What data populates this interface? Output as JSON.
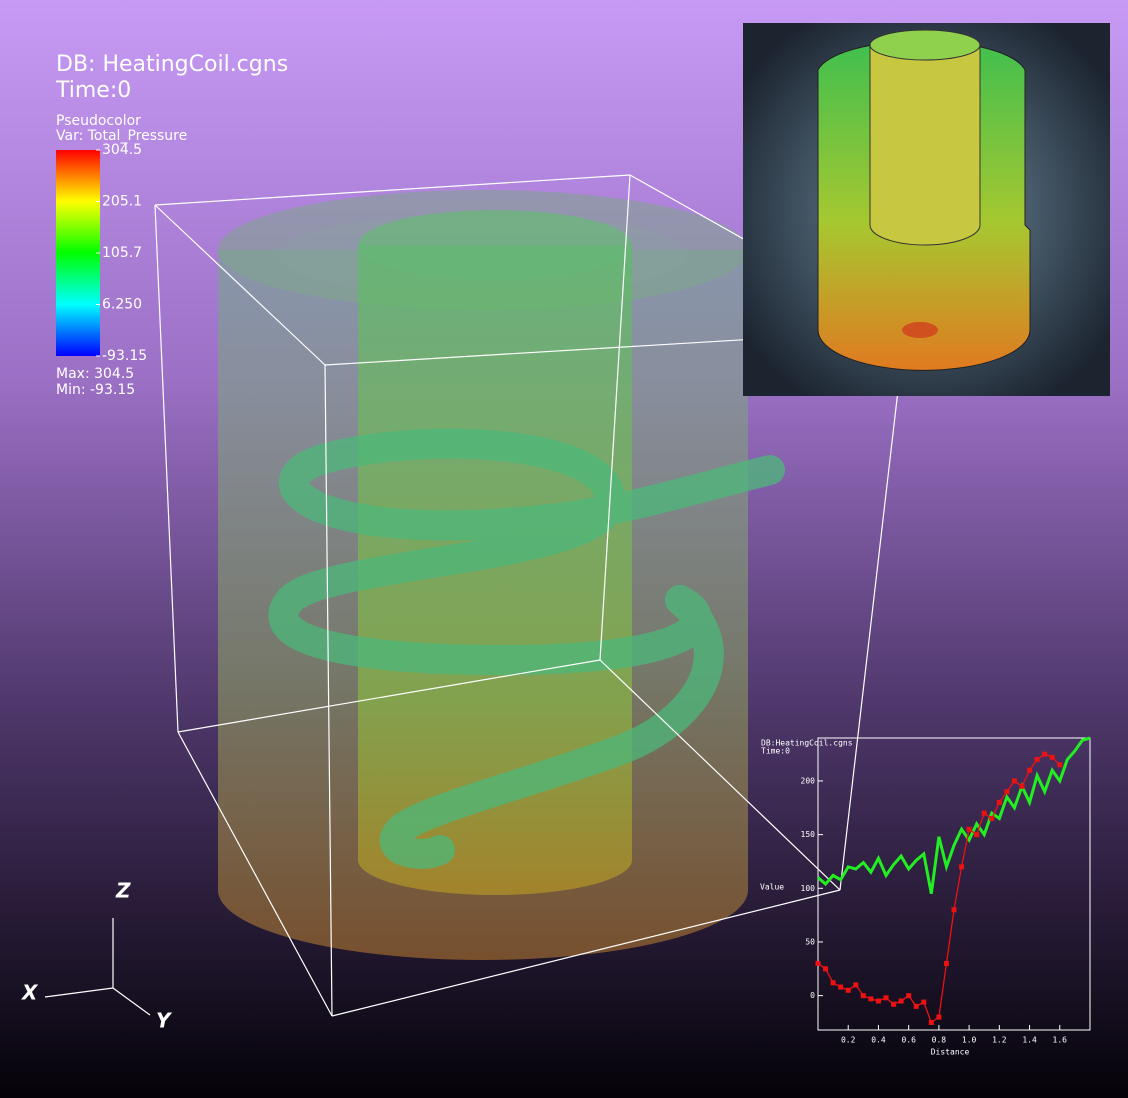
{
  "annotation": {
    "db": "DB: HeatingCoil.cgns",
    "time": "Time:0"
  },
  "legend": {
    "plot": "Pseudocolor",
    "var": "Var: Total_Pressure",
    "range": [
      -93.15,
      304.5
    ],
    "ticks": [
      304.5,
      205.1,
      105.7,
      {
        "value": 6.25,
        "label": "6.250"
      },
      -93.15
    ],
    "max": "Max: 304.5",
    "min": "Min: -93.15"
  },
  "triad": {
    "z": "Z",
    "x": "X",
    "y": "Y"
  },
  "chart_data": {
    "type": "line",
    "title": "DB:HeatingCoil.cgns",
    "subtitle": "Time:0",
    "y_label": "Value",
    "x_label": "Distance",
    "x": [
      0,
      0.05,
      0.1,
      0.15,
      0.2,
      0.25,
      0.3,
      0.35,
      0.4,
      0.45,
      0.5,
      0.55,
      0.6,
      0.65,
      0.7,
      0.75,
      0.8,
      0.85,
      0.9,
      0.95,
      1,
      1.05,
      1.1,
      1.15,
      1.2,
      1.25,
      1.3,
      1.35,
      1.4,
      1.45,
      1.5,
      1.55,
      1.6,
      1.65,
      1.7,
      1.75,
      1.8
    ],
    "series": [
      {
        "name": "green",
        "color": "#22ee22",
        "markers": false,
        "values": [
          110,
          104,
          112,
          108,
          120,
          118,
          124,
          115,
          128,
          112,
          122,
          130,
          118,
          126,
          132,
          95,
          148,
          120,
          140,
          155,
          145,
          160,
          150,
          170,
          165,
          185,
          175,
          195,
          180,
          205,
          190,
          210,
          200,
          220,
          228,
          238,
          240
        ]
      },
      {
        "name": "red",
        "color": "#ee1111",
        "markers": true,
        "values": [
          30,
          25,
          12,
          8,
          5,
          10,
          0,
          -3,
          -5,
          -2,
          -8,
          -5,
          0,
          -10,
          -6,
          -25,
          -20,
          30,
          80,
          120,
          155,
          150,
          170,
          165,
          180,
          190,
          200,
          195,
          210,
          220,
          225,
          222,
          215,
          null,
          null,
          null,
          null
        ]
      }
    ],
    "xlim": [
      0,
      1.8
    ],
    "ylim": [
      -32,
      240
    ],
    "xticks": [
      0.2,
      0.4,
      0.6,
      0.8,
      {
        "value": 1,
        "label": "1.0"
      },
      1.2,
      1.4,
      1.6
    ],
    "yticks": [
      0,
      50,
      100,
      150,
      200
    ]
  }
}
